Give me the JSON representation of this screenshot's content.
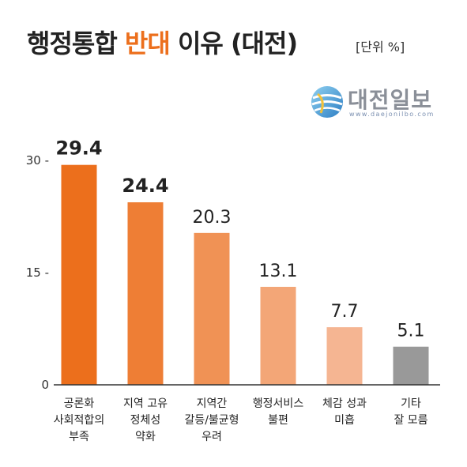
{
  "title": {
    "prefix": "행정통합 ",
    "highlight": "반대",
    "suffix": " 이유 (대전)"
  },
  "unit_label": "[단위 %]",
  "logo": {
    "name": "대전일보",
    "url": "www.daejonilbo.com"
  },
  "colors": {
    "title_highlight": "#ec6f1c",
    "axis": "#333333"
  },
  "chart_data": {
    "type": "bar",
    "categories": [
      [
        "공론화",
        "사회적합의",
        "부족"
      ],
      [
        "지역 고유",
        "정체성",
        "약화"
      ],
      [
        "지역간",
        "갈등/불균형",
        "우려"
      ],
      [
        "행정서비스",
        "불편"
      ],
      [
        "체감 성과",
        "미흡"
      ],
      [
        "기타",
        "잘 모름"
      ]
    ],
    "values": [
      29.4,
      24.4,
      20.3,
      13.1,
      7.7,
      5.1
    ],
    "value_labels": [
      "29.4",
      "24.4",
      "20.3",
      "13.1",
      "7.7",
      "5.1"
    ],
    "bold_value_labels": [
      true,
      true,
      false,
      false,
      false,
      false
    ],
    "bar_colors": [
      "#ec6f1c",
      "#ee7e35",
      "#f09255",
      "#f3a677",
      "#f5b592",
      "#999999"
    ],
    "yticks": [
      30,
      15,
      0
    ],
    "ytick_labels": [
      "30 -",
      "15 -",
      "0"
    ],
    "ylim": [
      0,
      30
    ],
    "grid": false,
    "title": "",
    "xlabel": "",
    "ylabel": ""
  }
}
